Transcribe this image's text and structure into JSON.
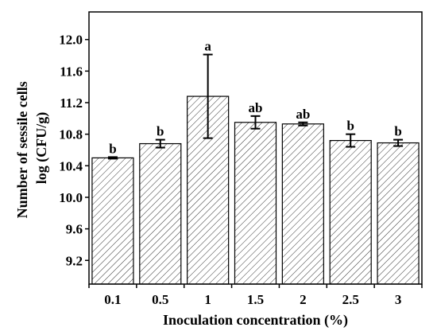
{
  "chart_data": {
    "type": "bar",
    "title": "",
    "xlabel": "Inoculation concentration (%)",
    "ylabel_lines": [
      "Number of sessile cells",
      "log (CFU/g)"
    ],
    "categories": [
      "0.1",
      "0.5",
      "1",
      "1.5",
      "2",
      "2.5",
      "3"
    ],
    "values": [
      10.5,
      10.68,
      11.28,
      10.95,
      10.93,
      10.72,
      10.69
    ],
    "errors": [
      0.01,
      0.05,
      0.53,
      0.08,
      0.02,
      0.08,
      0.04
    ],
    "significance": [
      "b",
      "b",
      "a",
      "ab",
      "ab",
      "b",
      "b"
    ],
    "ylim": [
      8.9,
      12.35
    ],
    "yticks": [
      9.2,
      9.6,
      10.0,
      10.4,
      10.8,
      11.2,
      11.6,
      12.0
    ],
    "bar_fill": "hatched",
    "bar_edge_color": "#000000",
    "grid": false,
    "legend": "none"
  }
}
